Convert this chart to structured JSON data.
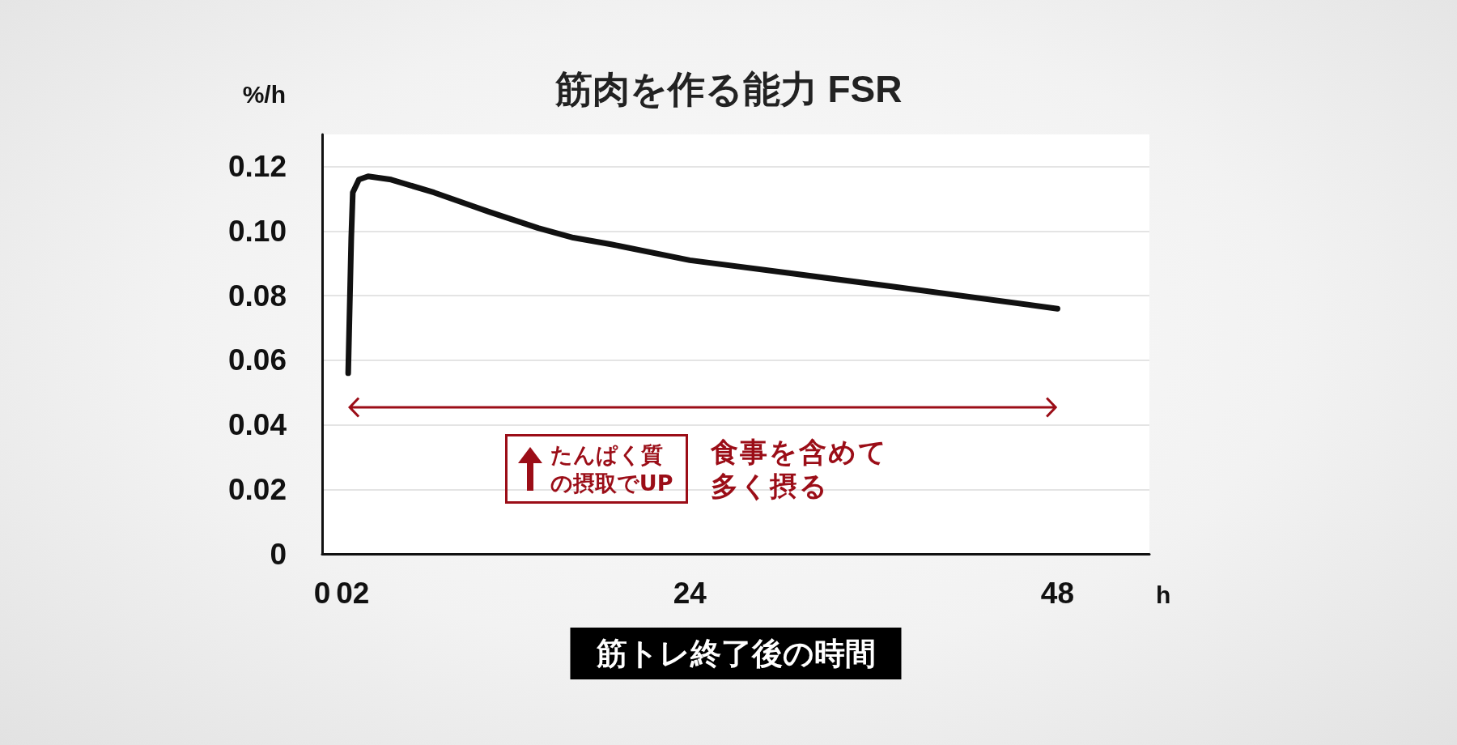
{
  "chart_data": {
    "type": "line",
    "title": "筋肉を作る能力 FSR",
    "xlabel": "筋トレ終了後の時間",
    "ylabel": "%/h",
    "annotations": [
      "h",
      "たんぱく質の摂取でUP",
      "食事を含めて多く摂る"
    ],
    "x": [
      1.7,
      1.9,
      2,
      2.4,
      3,
      4.5,
      7.3,
      10.9,
      14.1,
      16.4,
      18.8,
      24,
      30.5,
      37,
      48
    ],
    "values": [
      0.056,
      0.098,
      0.112,
      0.116,
      0.117,
      0.116,
      0.112,
      0.106,
      0.101,
      0.098,
      0.096,
      0.091,
      0.087,
      0.083,
      0.076
    ],
    "color": "#111111",
    "marker": "none",
    "line_style": "solid",
    "xlim": [
      0,
      54
    ],
    "xticks": [
      0,
      {
        "value": 2,
        "label": "02"
      },
      24,
      48
    ],
    "ylim": [
      0,
      0.13
    ],
    "yticks": [
      0,
      0.02,
      0.04,
      0.06,
      0.08,
      {
        "value": 0.1,
        "label": "0.10"
      },
      0.12
    ],
    "grid": "y"
  }
}
